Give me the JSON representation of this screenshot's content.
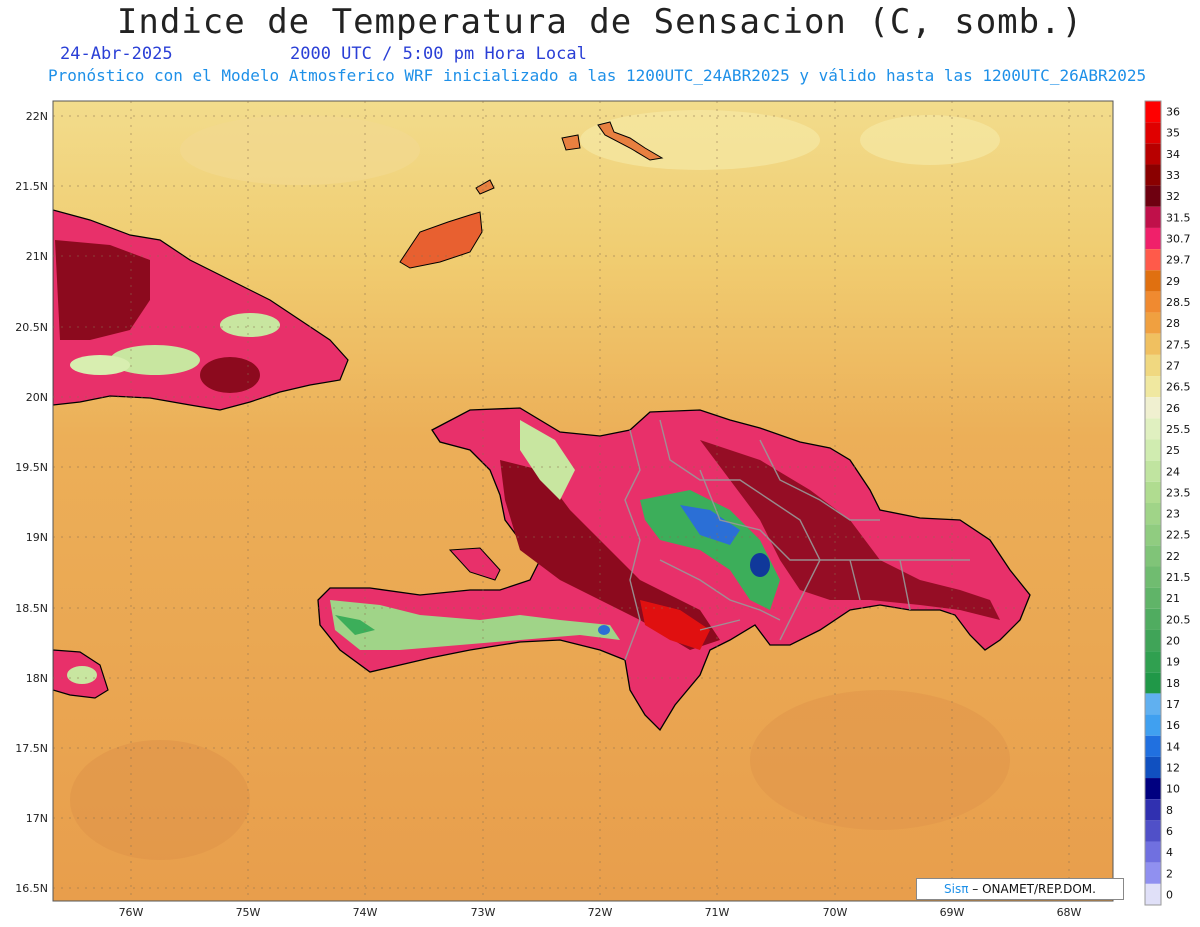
{
  "header": {
    "title": "Indice de Temperatura de Sensacion (C, somb.)",
    "date": "24-Abr-2025",
    "time": "2000 UTC / 5:00 pm Hora Local",
    "subtitle": "Pronóstico con el Modelo Atmosferico WRF inicializado a las 1200UTC_24ABR2025 y válido hasta las  1200UTC_26ABR2025"
  },
  "map": {
    "lat_labels": [
      "22N",
      "21.5N",
      "21N",
      "20.5N",
      "20N",
      "19.5N",
      "19N",
      "18.5N",
      "18N",
      "17.5N",
      "17N",
      "16.5N"
    ],
    "lon_labels": [
      "76W",
      "75W",
      "74W",
      "73W",
      "72W",
      "71W",
      "70W",
      "69W",
      "68W"
    ],
    "sea_color": "#e8a04e",
    "north_sea_color": "#f0d88a",
    "land_hot_color": "#8c0a1e",
    "land_mid_color": "#e8205a",
    "land_cool_color": "#c8e6a0",
    "cold_pocket_color": "#2b6fd6"
  },
  "colorbar": {
    "levels": [
      "36",
      "35",
      "34",
      "33",
      "32",
      "31.5",
      "30.7",
      "29.7",
      "29",
      "28.5",
      "28",
      "27.5",
      "27",
      "26.5",
      "26",
      "25.5",
      "25",
      "24",
      "23.5",
      "23",
      "22.5",
      "22",
      "21.5",
      "21",
      "20.5",
      "20",
      "19",
      "18",
      "17",
      "16",
      "14",
      "12",
      "10",
      "8",
      "6",
      "4",
      "2",
      "0"
    ],
    "colors": [
      "#ff0000",
      "#e00000",
      "#b80000",
      "#8a0000",
      "#6e0010",
      "#c0104a",
      "#f0206a",
      "#ff5a4a",
      "#e07010",
      "#f08a30",
      "#f0a040",
      "#f0c060",
      "#f0d880",
      "#f0e8a0",
      "#f0f0d0",
      "#e0f0c0",
      "#d0ecb0",
      "#c0e4a0",
      "#b0dc90",
      "#a0d488",
      "#90cc80",
      "#80c478",
      "#70bc70",
      "#60b468",
      "#50ac60",
      "#40a458",
      "#30a050",
      "#209848",
      "#60b0f0",
      "#40a0f0",
      "#2070e0",
      "#1050c0",
      "#000080",
      "#3030b0",
      "#5050c8",
      "#7070e0",
      "#9090f0",
      "#e0e0f8"
    ]
  },
  "credit": {
    "sis": "Sisπ",
    "rest": " – ONAMET/REP.DOM."
  }
}
